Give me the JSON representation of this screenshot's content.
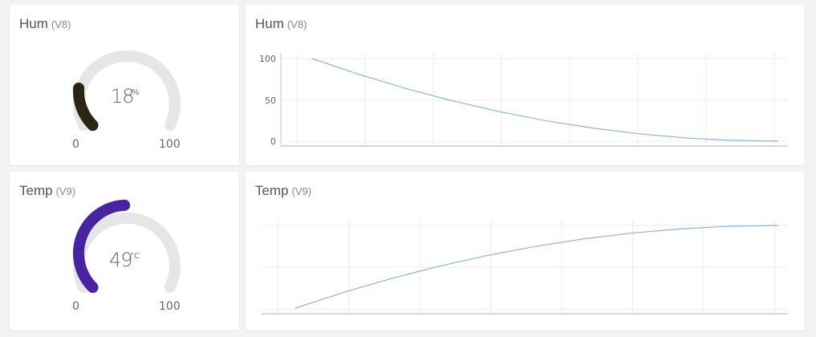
{
  "widgets": {
    "hum_gauge": {
      "title": "Hum",
      "pin": "(V8)",
      "value": "18",
      "unit": "%",
      "min": "0",
      "max": "100",
      "value_fraction": 0.18,
      "color": "#2b2611"
    },
    "temp_gauge": {
      "title": "Temp",
      "pin": "(V9)",
      "value": "49",
      "unit": "°C",
      "min": "0",
      "max": "100",
      "value_fraction": 0.49,
      "color": "#4a23a3"
    },
    "hum_chart": {
      "title": "Hum",
      "pin": "(V8)"
    },
    "temp_chart": {
      "title": "Temp",
      "pin": "(V9)"
    }
  },
  "chart_data": [
    {
      "type": "line",
      "title": "Hum (V8)",
      "xlabel": "",
      "ylabel": "",
      "ylim": [
        0,
        100
      ],
      "yticks": [
        "100",
        "50",
        "0"
      ],
      "grid": true,
      "line_color": "#8ab4e6",
      "series": [
        {
          "x": [
            0,
            0.1,
            0.2,
            0.3,
            0.4,
            0.5,
            0.6,
            0.7,
            0.8,
            0.9,
            1.0
          ],
          "values": [
            100,
            81,
            64,
            49,
            36,
            25,
            16,
            9,
            4,
            1,
            0
          ]
        }
      ]
    },
    {
      "type": "line",
      "title": "Temp (V9)",
      "xlabel": "",
      "ylabel": "",
      "yticks": [],
      "grid": true,
      "line_color": "#8ab4e6",
      "series": [
        {
          "x": [
            0,
            0.1,
            0.2,
            0.3,
            0.4,
            0.5,
            0.6,
            0.7,
            0.8,
            0.9,
            1.0
          ],
          "values": [
            0,
            0.19,
            0.36,
            0.51,
            0.64,
            0.75,
            0.84,
            0.91,
            0.96,
            0.99,
            1.0
          ]
        }
      ]
    }
  ]
}
